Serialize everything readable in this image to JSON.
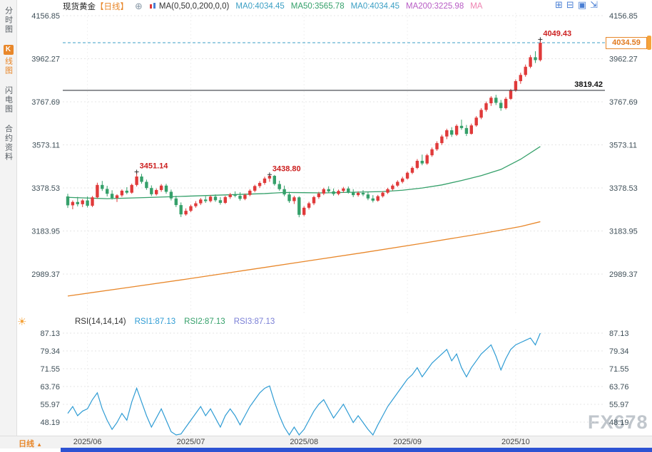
{
  "window": {
    "watermark": "FX678"
  },
  "sidebar": {
    "tabs": [
      {
        "label": "分时图"
      },
      {
        "badge": "K",
        "label": "线图",
        "active": true
      },
      {
        "label": "闪电图"
      },
      {
        "label": "合约资料"
      }
    ]
  },
  "header": {
    "title": "现货黄金",
    "timeframe": "【日线】",
    "plus_icon": "⊕",
    "ma_label": "MA(0,50,0,200,0,0)",
    "legend": [
      {
        "text": "MA0:4034.45",
        "color": "#3b9fc4"
      },
      {
        "text": "MA50:3565.78",
        "color": "#35a06a"
      },
      {
        "text": "MA0:4034.45",
        "color": "#3b9fc4"
      },
      {
        "text": "MA200:3225.98",
        "color": "#b75bc4"
      },
      {
        "text": "MA",
        "color": "#ee82b0"
      }
    ],
    "layout_icons": [
      {
        "name": "grid-layout-icon",
        "glyph": "⊞"
      },
      {
        "name": "split-layout-icon",
        "glyph": "⊟"
      },
      {
        "name": "active-layout-icon",
        "glyph": "▣"
      },
      {
        "name": "expand-icon",
        "glyph": "⇲"
      }
    ]
  },
  "rsi_header": {
    "label": "RSI(14,14,14)",
    "items": [
      {
        "text": "RSI1:87.13",
        "color": "#2f9cd4"
      },
      {
        "text": "RSI2:87.13",
        "color": "#35a06a"
      },
      {
        "text": "RSI3:87.13",
        "color": "#7a7fd6"
      }
    ]
  },
  "icons": {
    "sun": "☀"
  },
  "price_box": {
    "value": "4034.59",
    "color": "#e8872a"
  },
  "bottom": {
    "timeframe": "日线",
    "arrow": "▲"
  },
  "chart_data": {
    "type": "candlestick",
    "title": "现货黄金【日线】",
    "main": {
      "y_ticks": [
        4156.85,
        3962.27,
        3767.69,
        3573.11,
        3378.53,
        3183.95,
        2989.37
      ],
      "up_color": "#e03a3a",
      "down_color": "#35a06a",
      "ma50_color": "#35a06a",
      "ma200_color": "#e8872a",
      "candles": [
        [
          3340,
          3352,
          3288,
          3300
        ],
        [
          3300,
          3322,
          3282,
          3315
        ],
        [
          3315,
          3338,
          3295,
          3305
        ],
        [
          3305,
          3328,
          3292,
          3322
        ],
        [
          3322,
          3340,
          3290,
          3298
        ],
        [
          3298,
          3342,
          3292,
          3336
        ],
        [
          3336,
          3402,
          3330,
          3392
        ],
        [
          3392,
          3410,
          3365,
          3374
        ],
        [
          3374,
          3388,
          3340,
          3352
        ],
        [
          3352,
          3368,
          3326,
          3333
        ],
        [
          3333,
          3350,
          3315,
          3345
        ],
        [
          3345,
          3372,
          3338,
          3366
        ],
        [
          3366,
          3382,
          3350,
          3357
        ],
        [
          3357,
          3398,
          3352,
          3392
        ],
        [
          3392,
          3451.14,
          3385,
          3430
        ],
        [
          3430,
          3442,
          3398,
          3406
        ],
        [
          3406,
          3416,
          3370,
          3378
        ],
        [
          3378,
          3390,
          3342,
          3350
        ],
        [
          3350,
          3376,
          3344,
          3369
        ],
        [
          3369,
          3396,
          3361,
          3389
        ],
        [
          3389,
          3397,
          3352,
          3361
        ],
        [
          3361,
          3371,
          3322,
          3331
        ],
        [
          3331,
          3343,
          3292,
          3301
        ],
        [
          3301,
          3313,
          3247,
          3259
        ],
        [
          3259,
          3286,
          3253,
          3275
        ],
        [
          3275,
          3303,
          3269,
          3296
        ],
        [
          3296,
          3319,
          3289,
          3309
        ],
        [
          3309,
          3333,
          3301,
          3326
        ],
        [
          3326,
          3341,
          3311,
          3319
        ],
        [
          3319,
          3346,
          3313,
          3339
        ],
        [
          3339,
          3349,
          3316,
          3323
        ],
        [
          3323,
          3337,
          3303,
          3311
        ],
        [
          3311,
          3343,
          3306,
          3337
        ],
        [
          3337,
          3356,
          3329,
          3349
        ],
        [
          3349,
          3363,
          3336,
          3343
        ],
        [
          3343,
          3359,
          3321,
          3329
        ],
        [
          3329,
          3353,
          3323,
          3347
        ],
        [
          3347,
          3373,
          3341,
          3366
        ],
        [
          3366,
          3393,
          3359,
          3387
        ],
        [
          3387,
          3409,
          3379,
          3401
        ],
        [
          3401,
          3429,
          3393,
          3421
        ],
        [
          3421,
          3438.8,
          3406,
          3433
        ],
        [
          3433,
          3437,
          3389,
          3396
        ],
        [
          3396,
          3411,
          3366,
          3373
        ],
        [
          3373,
          3389,
          3341,
          3349
        ],
        [
          3349,
          3361,
          3311,
          3319
        ],
        [
          3319,
          3343,
          3306,
          3336
        ],
        [
          3336,
          3341,
          3246,
          3257
        ],
        [
          3257,
          3296,
          3251,
          3289
        ],
        [
          3289,
          3316,
          3281,
          3309
        ],
        [
          3309,
          3343,
          3301,
          3337
        ],
        [
          3337,
          3361,
          3329,
          3353
        ],
        [
          3353,
          3379,
          3346,
          3373
        ],
        [
          3373,
          3386,
          3356,
          3363
        ],
        [
          3363,
          3376,
          3343,
          3351
        ],
        [
          3351,
          3371,
          3345,
          3365
        ],
        [
          3365,
          3383,
          3357,
          3376
        ],
        [
          3376,
          3385,
          3353,
          3359
        ],
        [
          3359,
          3373,
          3337,
          3346
        ],
        [
          3346,
          3363,
          3339,
          3356
        ],
        [
          3356,
          3369,
          3341,
          3349
        ],
        [
          3349,
          3359,
          3323,
          3331
        ],
        [
          3331,
          3346,
          3313,
          3321
        ],
        [
          3321,
          3347,
          3316,
          3341
        ],
        [
          3341,
          3363,
          3335,
          3357
        ],
        [
          3357,
          3379,
          3351,
          3373
        ],
        [
          3373,
          3396,
          3367,
          3389
        ],
        [
          3389,
          3413,
          3383,
          3406
        ],
        [
          3406,
          3429,
          3399,
          3421
        ],
        [
          3421,
          3453,
          3416,
          3447
        ],
        [
          3447,
          3476,
          3441,
          3469
        ],
        [
          3469,
          3509,
          3463,
          3501
        ],
        [
          3501,
          3529,
          3481,
          3489
        ],
        [
          3489,
          3533,
          3483,
          3526
        ],
        [
          3526,
          3561,
          3519,
          3553
        ],
        [
          3553,
          3589,
          3546,
          3581
        ],
        [
          3581,
          3619,
          3573,
          3611
        ],
        [
          3611,
          3646,
          3599,
          3639
        ],
        [
          3639,
          3653,
          3609,
          3619
        ],
        [
          3619,
          3666,
          3613,
          3659
        ],
        [
          3659,
          3687,
          3641,
          3649
        ],
        [
          3649,
          3663,
          3613,
          3623
        ],
        [
          3623,
          3669,
          3619,
          3661
        ],
        [
          3661,
          3703,
          3655,
          3696
        ],
        [
          3696,
          3739,
          3689,
          3731
        ],
        [
          3731,
          3769,
          3723,
          3761
        ],
        [
          3761,
          3793,
          3749,
          3786
        ],
        [
          3786,
          3799,
          3753,
          3763
        ],
        [
          3763,
          3776,
          3727,
          3739
        ],
        [
          3739,
          3789,
          3733,
          3781
        ],
        [
          3781,
          3826,
          3776,
          3819
        ],
        [
          3819,
          3869,
          3813,
          3861
        ],
        [
          3861,
          3899,
          3849,
          3889
        ],
        [
          3889,
          3936,
          3881,
          3926
        ],
        [
          3926,
          3979,
          3919,
          3969
        ],
        [
          3969,
          3996,
          3943,
          3956
        ],
        [
          3956,
          4049.43,
          3950,
          4034.59
        ]
      ],
      "ma50_points": [
        [
          0,
          3336
        ],
        [
          8,
          3330
        ],
        [
          16,
          3335
        ],
        [
          24,
          3341
        ],
        [
          32,
          3347
        ],
        [
          40,
          3353
        ],
        [
          44,
          3358
        ],
        [
          48,
          3357
        ],
        [
          52,
          3356
        ],
        [
          56,
          3358
        ],
        [
          60,
          3360
        ],
        [
          64,
          3362
        ],
        [
          68,
          3368
        ],
        [
          72,
          3378
        ],
        [
          76,
          3392
        ],
        [
          80,
          3412
        ],
        [
          84,
          3434
        ],
        [
          88,
          3462
        ],
        [
          92,
          3508
        ],
        [
          96,
          3565.78
        ]
      ],
      "ma200_points": [
        [
          0,
          2890
        ],
        [
          12,
          2928
        ],
        [
          24,
          2966
        ],
        [
          36,
          3006
        ],
        [
          48,
          3046
        ],
        [
          60,
          3086
        ],
        [
          72,
          3128
        ],
        [
          84,
          3172
        ],
        [
          92,
          3204
        ],
        [
          96,
          3225.98
        ]
      ],
      "reference_lines": [
        {
          "value": 4034.59,
          "style": "dashed",
          "color": "#3b9fc4"
        },
        {
          "value": 3819.42,
          "style": "solid",
          "color": "#3a3f45",
          "label": "3819.42"
        }
      ],
      "annotations": [
        {
          "i": 14,
          "value": 3451.14,
          "label": "3451.14"
        },
        {
          "i": 41,
          "value": 3438.8,
          "label": "3438.80"
        },
        {
          "i": 96,
          "value": 4049.43,
          "label": "4049.43"
        }
      ]
    },
    "rsi": {
      "y_ticks": [
        87.13,
        79.34,
        71.55,
        63.76,
        55.97,
        48.19
      ],
      "color": "#2f9cd4",
      "values": [
        52,
        55,
        51,
        53,
        54,
        58,
        61,
        54,
        49,
        45,
        48,
        52,
        49,
        57,
        63,
        57,
        51,
        46,
        50,
        54,
        49,
        44,
        41,
        43,
        46,
        49,
        52,
        55,
        51,
        54,
        50,
        46,
        51,
        54,
        51,
        47,
        51,
        55,
        58,
        61,
        63,
        64,
        57,
        51,
        46,
        42,
        46,
        40,
        45,
        49,
        53,
        56,
        58,
        54,
        50,
        53,
        56,
        52,
        48,
        51,
        48,
        45,
        42,
        47,
        51,
        55,
        58,
        61,
        64,
        67,
        69,
        72,
        68,
        71,
        74,
        76,
        78,
        80,
        75,
        78,
        72,
        68,
        72,
        75,
        78,
        80,
        82,
        77,
        71,
        76,
        80,
        82,
        83,
        84,
        85,
        82,
        87.13
      ]
    },
    "x_ticks": [
      {
        "i": 4,
        "label": "2025/06"
      },
      {
        "i": 25,
        "label": "2025/07"
      },
      {
        "i": 48,
        "label": "2025/08"
      },
      {
        "i": 69,
        "label": "2025/09"
      },
      {
        "i": 91,
        "label": "2025/10"
      }
    ]
  }
}
